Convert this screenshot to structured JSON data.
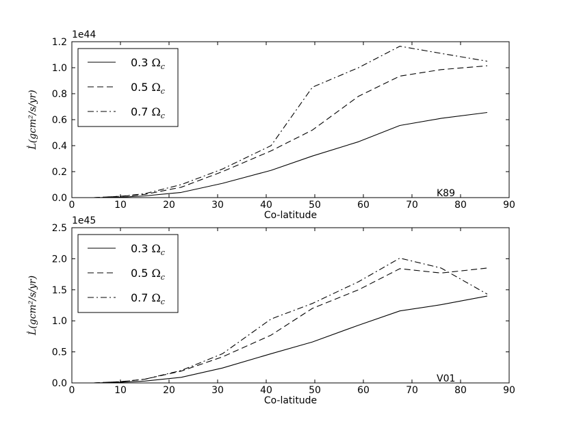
{
  "chart_data": [
    {
      "type": "line",
      "panel_label": "K89",
      "xlabel": "Co-latitude",
      "ylabel": "L̇(gcm²/s/yr)",
      "offset_text": "1e44",
      "xlim": [
        0,
        90
      ],
      "ylim": [
        0.0,
        1.2
      ],
      "xticks": [
        "0",
        "10",
        "20",
        "30",
        "40",
        "50",
        "60",
        "70",
        "80",
        "90"
      ],
      "yticks": [
        "0.0",
        "0.2",
        "0.4",
        "0.6",
        "0.8",
        "1.0",
        "1.2"
      ],
      "legend_position": "top-left",
      "series": [
        {
          "name": "0.3 Ωc",
          "omega_factor": "0.3",
          "style": "solid",
          "x": [
            4.5,
            10,
            15,
            22.5,
            31,
            41,
            49.5,
            59,
            67.5,
            76,
            85.5
          ],
          "y": [
            0.0,
            0.003,
            0.013,
            0.04,
            0.11,
            0.21,
            0.32,
            0.43,
            0.555,
            0.61,
            0.655
          ]
        },
        {
          "name": "0.5 Ωc",
          "omega_factor": "0.5",
          "style": "dashed",
          "x": [
            4.5,
            10,
            15,
            22.5,
            31,
            41,
            49.5,
            59,
            67.5,
            76,
            85.5
          ],
          "y": [
            0.0,
            0.01,
            0.025,
            0.08,
            0.2,
            0.36,
            0.52,
            0.78,
            0.935,
            0.985,
            1.015
          ]
        },
        {
          "name": "0.7 Ωc",
          "omega_factor": "0.7",
          "style": "dashdot",
          "x": [
            4.5,
            10,
            15,
            22.5,
            31,
            41,
            49.5,
            59,
            67.5,
            76,
            85.5
          ],
          "y": [
            0.0,
            0.01,
            0.03,
            0.1,
            0.22,
            0.4,
            0.85,
            1.0,
            1.165,
            1.11,
            1.05
          ]
        }
      ]
    },
    {
      "type": "line",
      "panel_label": "V01",
      "xlabel": "Co-latitude",
      "ylabel": "L̇(gcm²/s/yr)",
      "offset_text": "1e45",
      "xlim": [
        0,
        90
      ],
      "ylim": [
        0.0,
        2.5
      ],
      "xticks": [
        "0",
        "10",
        "20",
        "30",
        "40",
        "50",
        "60",
        "70",
        "80",
        "90"
      ],
      "yticks": [
        "0.0",
        "0.5",
        "1.0",
        "1.5",
        "2.0",
        "2.5"
      ],
      "legend_position": "top-left",
      "series": [
        {
          "name": "0.3 Ωc",
          "omega_factor": "0.3",
          "style": "solid",
          "x": [
            4.5,
            10,
            15,
            22.5,
            31,
            41,
            49.5,
            59,
            67.5,
            76,
            85.5
          ],
          "y": [
            0.0,
            0.01,
            0.03,
            0.09,
            0.24,
            0.47,
            0.66,
            0.93,
            1.16,
            1.26,
            1.4
          ]
        },
        {
          "name": "0.5 Ωc",
          "omega_factor": "0.5",
          "style": "dashed",
          "x": [
            4.5,
            10,
            15,
            22.5,
            31,
            41,
            49.5,
            59,
            67.5,
            76,
            85.5
          ],
          "y": [
            0.0,
            0.02,
            0.06,
            0.19,
            0.42,
            0.77,
            1.2,
            1.5,
            1.84,
            1.77,
            1.85
          ]
        },
        {
          "name": "0.7 Ωc",
          "omega_factor": "0.7",
          "style": "dashdot",
          "x": [
            4.5,
            10,
            15,
            22.5,
            31,
            41,
            49.5,
            59,
            67.5,
            76,
            85.5
          ],
          "y": [
            0.0,
            0.02,
            0.06,
            0.2,
            0.47,
            1.03,
            1.28,
            1.63,
            2.01,
            1.85,
            1.43
          ]
        }
      ]
    }
  ]
}
